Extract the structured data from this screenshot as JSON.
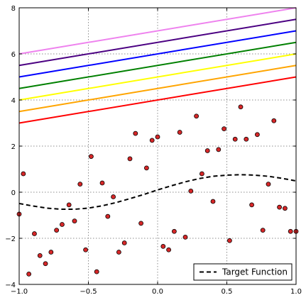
{
  "chart_data": {
    "type": "line",
    "xlim": [
      -1.0,
      1.0
    ],
    "ylim": [
      -4,
      8
    ],
    "grid": true,
    "grid_style": "dotted",
    "x_ticks": [
      -1.0,
      -0.5,
      0.0,
      0.5,
      1.0
    ],
    "x_tick_labels": [
      "−1.0",
      "−0.5",
      "0.0",
      "0.5",
      "1.0"
    ],
    "y_ticks": [
      -4,
      -2,
      0,
      2,
      4,
      6,
      8
    ],
    "y_tick_labels": [
      "−4",
      "−2",
      "0",
      "2",
      "4",
      "6",
      "8"
    ],
    "lines": [
      {
        "color": "#ee82ee",
        "x": [
          -1.0,
          1.0
        ],
        "y": [
          6.0,
          8.0
        ]
      },
      {
        "color": "#4b0082",
        "x": [
          -1.0,
          1.0
        ],
        "y": [
          5.5,
          7.5
        ]
      },
      {
        "color": "#0000ff",
        "x": [
          -1.0,
          1.0
        ],
        "y": [
          5.0,
          7.0
        ]
      },
      {
        "color": "#008000",
        "x": [
          -1.0,
          1.0
        ],
        "y": [
          4.5,
          6.5
        ]
      },
      {
        "color": "#ffff00",
        "x": [
          -1.0,
          1.0
        ],
        "y": [
          4.0,
          6.0
        ]
      },
      {
        "color": "#ffa500",
        "x": [
          -1.0,
          1.0
        ],
        "y": [
          3.5,
          5.5
        ]
      },
      {
        "color": "#ff0000",
        "x": [
          -1.0,
          1.0
        ],
        "y": [
          3.0,
          5.0
        ]
      }
    ],
    "target_function": {
      "name": "Target Function",
      "style": "dashed",
      "color": "#000000",
      "x": [
        -1.0,
        -0.9,
        -0.8,
        -0.7,
        -0.6,
        -0.5,
        -0.4,
        -0.3,
        -0.2,
        -0.1,
        0.0,
        0.1,
        0.2,
        0.3,
        0.4,
        0.5,
        0.6,
        0.7,
        0.8,
        0.9,
        1.0
      ],
      "y": [
        -0.49,
        -0.6,
        -0.69,
        -0.74,
        -0.74,
        -0.69,
        -0.59,
        -0.45,
        -0.28,
        -0.1,
        0.1,
        0.28,
        0.45,
        0.59,
        0.69,
        0.74,
        0.76,
        0.74,
        0.69,
        0.6,
        0.49
      ]
    },
    "scatter": {
      "color": "#d62728",
      "edge_color": "#000000",
      "points": [
        [
          -1.0,
          -0.95
        ],
        [
          -0.97,
          0.8
        ],
        [
          -0.93,
          -3.55
        ],
        [
          -0.89,
          -1.8
        ],
        [
          -0.85,
          -2.75
        ],
        [
          -0.81,
          -3.1
        ],
        [
          -0.77,
          -2.6
        ],
        [
          -0.73,
          -1.65
        ],
        [
          -0.69,
          -1.4
        ],
        [
          -0.64,
          -0.55
        ],
        [
          -0.6,
          -1.25
        ],
        [
          -0.56,
          0.35
        ],
        [
          -0.52,
          -2.5
        ],
        [
          -0.48,
          1.55
        ],
        [
          -0.44,
          -3.45
        ],
        [
          -0.4,
          0.4
        ],
        [
          -0.36,
          -1.05
        ],
        [
          -0.32,
          -0.2
        ],
        [
          -0.28,
          -2.6
        ],
        [
          -0.24,
          -2.2
        ],
        [
          -0.2,
          1.45
        ],
        [
          -0.16,
          2.55
        ],
        [
          -0.12,
          -1.35
        ],
        [
          -0.08,
          1.05
        ],
        [
          -0.04,
          2.25
        ],
        [
          0.0,
          2.4
        ],
        [
          0.04,
          -2.35
        ],
        [
          0.08,
          -2.5
        ],
        [
          0.12,
          -1.7
        ],
        [
          0.16,
          2.6
        ],
        [
          0.2,
          -1.95
        ],
        [
          0.24,
          0.05
        ],
        [
          0.28,
          3.3
        ],
        [
          0.32,
          0.8
        ],
        [
          0.36,
          1.8
        ],
        [
          0.4,
          -0.4
        ],
        [
          0.44,
          1.85
        ],
        [
          0.48,
          2.75
        ],
        [
          0.52,
          -2.1
        ],
        [
          0.56,
          2.3
        ],
        [
          0.6,
          3.7
        ],
        [
          0.64,
          2.3
        ],
        [
          0.68,
          -0.55
        ],
        [
          0.72,
          2.5
        ],
        [
          0.76,
          -1.65
        ],
        [
          0.8,
          0.35
        ],
        [
          0.84,
          3.1
        ],
        [
          0.88,
          -0.65
        ],
        [
          0.92,
          -0.7
        ],
        [
          0.96,
          -1.7
        ],
        [
          1.0,
          -1.7
        ]
      ]
    },
    "legend": {
      "placement": "lower right",
      "entries": [
        {
          "label": "Target Function",
          "style": "dashed",
          "color": "#000000"
        }
      ]
    }
  }
}
